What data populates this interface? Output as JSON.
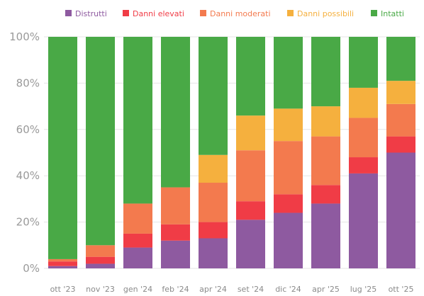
{
  "chart_data": {
    "type": "bar",
    "stacked": true,
    "title": "",
    "xlabel": "",
    "ylabel": "",
    "ylim": [
      0,
      100
    ],
    "y_ticks": [
      "0%",
      "20%",
      "40%",
      "60%",
      "80%",
      "100%"
    ],
    "legend_position": "top-right",
    "grid": true,
    "categories": [
      "ott '23",
      "nov '23",
      "gen '24",
      "feb '24",
      "apr '24",
      "set '24",
      "dic '24",
      "apr '25",
      "lug '25",
      "ott '25"
    ],
    "series": [
      {
        "name": "Distrutti",
        "color": "#8e5aa0",
        "values": [
          1,
          2,
          9,
          12,
          13,
          21,
          24,
          28,
          41,
          50
        ]
      },
      {
        "name": "Danni elevati",
        "color": "#f03c46",
        "values": [
          2,
          3,
          6,
          7,
          7,
          8,
          8,
          8,
          7,
          7
        ]
      },
      {
        "name": "Danni moderati",
        "color": "#f37a4e",
        "values": [
          1,
          5,
          13,
          16,
          17,
          22,
          23,
          21,
          17,
          14
        ]
      },
      {
        "name": "Danni possibili",
        "color": "#f5b03e",
        "values": [
          0,
          0,
          0,
          0,
          12,
          15,
          14,
          13,
          13,
          10
        ]
      },
      {
        "name": "Intatti",
        "color": "#49a946",
        "values": [
          96,
          90,
          72,
          65,
          51,
          34,
          31,
          30,
          22,
          19
        ]
      }
    ]
  }
}
